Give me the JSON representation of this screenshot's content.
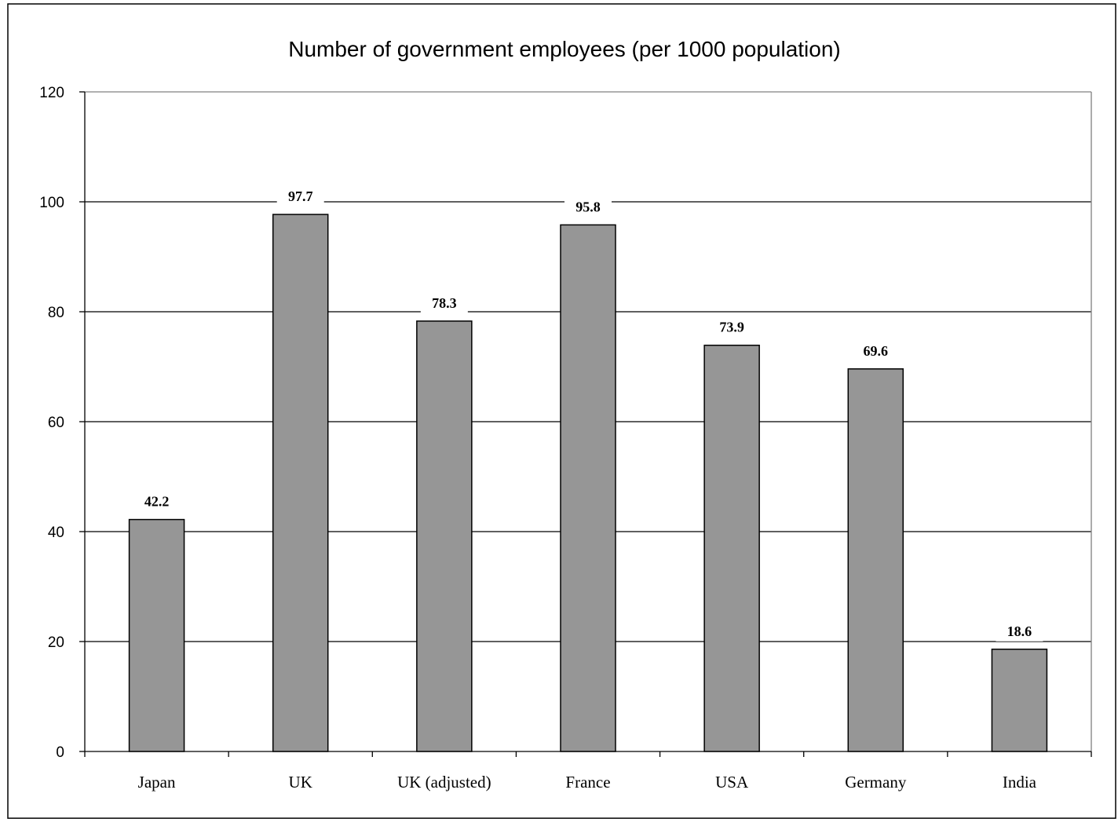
{
  "chart_data": {
    "type": "bar",
    "title": "Number of government employees (per 1000 population)",
    "xlabel": "",
    "ylabel": "",
    "categories": [
      "Japan",
      "UK",
      "UK (adjusted)",
      "France",
      "USA",
      "Germany",
      "India"
    ],
    "values": [
      42.2,
      97.7,
      78.3,
      95.8,
      73.9,
      69.6,
      18.6
    ],
    "value_labels": [
      "42.2",
      "97.7",
      "78.3",
      "95.8",
      "73.9",
      "69.6",
      "18.6"
    ],
    "ylim": [
      0,
      120
    ],
    "yticks": [
      0,
      20,
      40,
      60,
      80,
      100,
      120
    ],
    "ytick_labels": [
      "0",
      "20",
      "40",
      "60",
      "80",
      "100",
      "120"
    ],
    "grid": true,
    "legend": "none",
    "colors": {
      "bar_fill": "#969696",
      "bar_stroke": "#000000",
      "gridline": "#000000",
      "plot_border": "#808080",
      "frame": "#000000"
    }
  }
}
